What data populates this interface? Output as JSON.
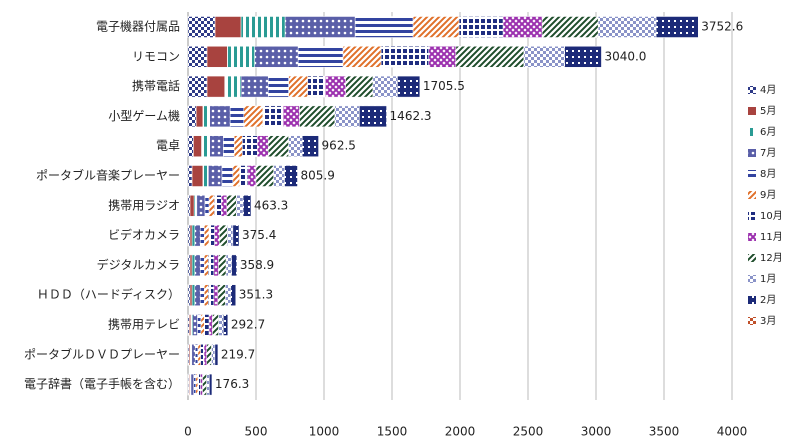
{
  "chart_data": {
    "type": "stacked-barh",
    "categories": [
      "電子機器付属品",
      "リモコン",
      "携帯電話",
      "小型ゲーム機",
      "電卓",
      "ポータブル音楽プレーヤー",
      "携帯用ラジオ",
      "ビデオカメラ",
      "デジタルカメラ",
      "ＨＤＤ（ハードディスク）",
      "携帯用テレビ",
      "ポータブルＤＶＤプレーヤー",
      "電子辞書（電子手帳を含む）"
    ],
    "series": [
      {
        "name": "4月",
        "color": "#2e3a87",
        "values": [
          199,
          140,
          140,
          60,
          40,
          30,
          15,
          15,
          15,
          15,
          10,
          8,
          6
        ]
      },
      {
        "name": "5月",
        "color": "#a8433f",
        "values": [
          191,
          150,
          130,
          50,
          60,
          80,
          30,
          15,
          15,
          15,
          10,
          8,
          6
        ]
      },
      {
        "name": "6月",
        "color": "#2a9b94",
        "values": [
          324,
          200,
          120,
          50,
          60,
          40,
          20,
          20,
          20,
          20,
          15,
          12,
          10
        ]
      },
      {
        "name": "7月",
        "color": "#5a5fa8",
        "values": [
          515,
          320,
          200,
          150,
          100,
          100,
          60,
          40,
          40,
          40,
          35,
          25,
          20
        ]
      },
      {
        "name": "8月",
        "color": "#3344a0",
        "values": [
          426,
          330,
          150,
          100,
          80,
          80,
          30,
          30,
          30,
          30,
          25,
          20,
          15
        ]
      },
      {
        "name": "9月",
        "color": "#e0702a",
        "values": [
          338,
          280,
          140,
          140,
          60,
          50,
          40,
          35,
          30,
          30,
          25,
          20,
          15
        ]
      },
      {
        "name": "10月",
        "color": "#1f2d80",
        "values": [
          324,
          350,
          130,
          150,
          110,
          60,
          50,
          40,
          40,
          40,
          35,
          25,
          20
        ]
      },
      {
        "name": "11月",
        "color": "#9b2fae",
        "values": [
          287,
          200,
          150,
          120,
          80,
          60,
          40,
          35,
          35,
          30,
          25,
          20,
          15
        ]
      },
      {
        "name": "12月",
        "color": "#1e4d2b",
        "values": [
          412,
          500,
          200,
          260,
          150,
          130,
          70,
          60,
          55,
          55,
          45,
          35,
          30
        ]
      },
      {
        "name": "1月",
        "color": "#8a93c8",
        "values": [
          426,
          300,
          180,
          180,
          100,
          80,
          50,
          40,
          40,
          40,
          35,
          25,
          20
        ]
      },
      {
        "name": "2月",
        "color": "#1c2a78",
        "values": [
          310,
          270,
          165,
          200,
          120,
          95,
          58,
          45,
          39,
          36,
          33,
          22,
          19
        ]
      },
      {
        "name": "3月",
        "color": "#c0502a",
        "values": [
          0,
          0,
          0,
          0,
          0,
          0,
          0,
          0,
          0,
          0,
          0,
          0,
          0
        ]
      }
    ],
    "totals": [
      3752.6,
      3040.0,
      1705.5,
      1462.3,
      962.5,
      805.9,
      463.3,
      375.4,
      358.9,
      351.3,
      292.7,
      219.7,
      176.3
    ],
    "value_labels": [
      "3752.6",
      "3040.0",
      "1705.5",
      "1462.3",
      "962.5",
      "805.9",
      "463.3",
      "375.4",
      "358.9",
      "351.3",
      "292.7",
      "219.7",
      "176.3"
    ],
    "xlim": [
      0,
      4000
    ],
    "xticks": [
      0,
      500,
      1000,
      1500,
      2000,
      2500,
      3000,
      3500,
      4000
    ],
    "grid": true,
    "legend": "right"
  }
}
